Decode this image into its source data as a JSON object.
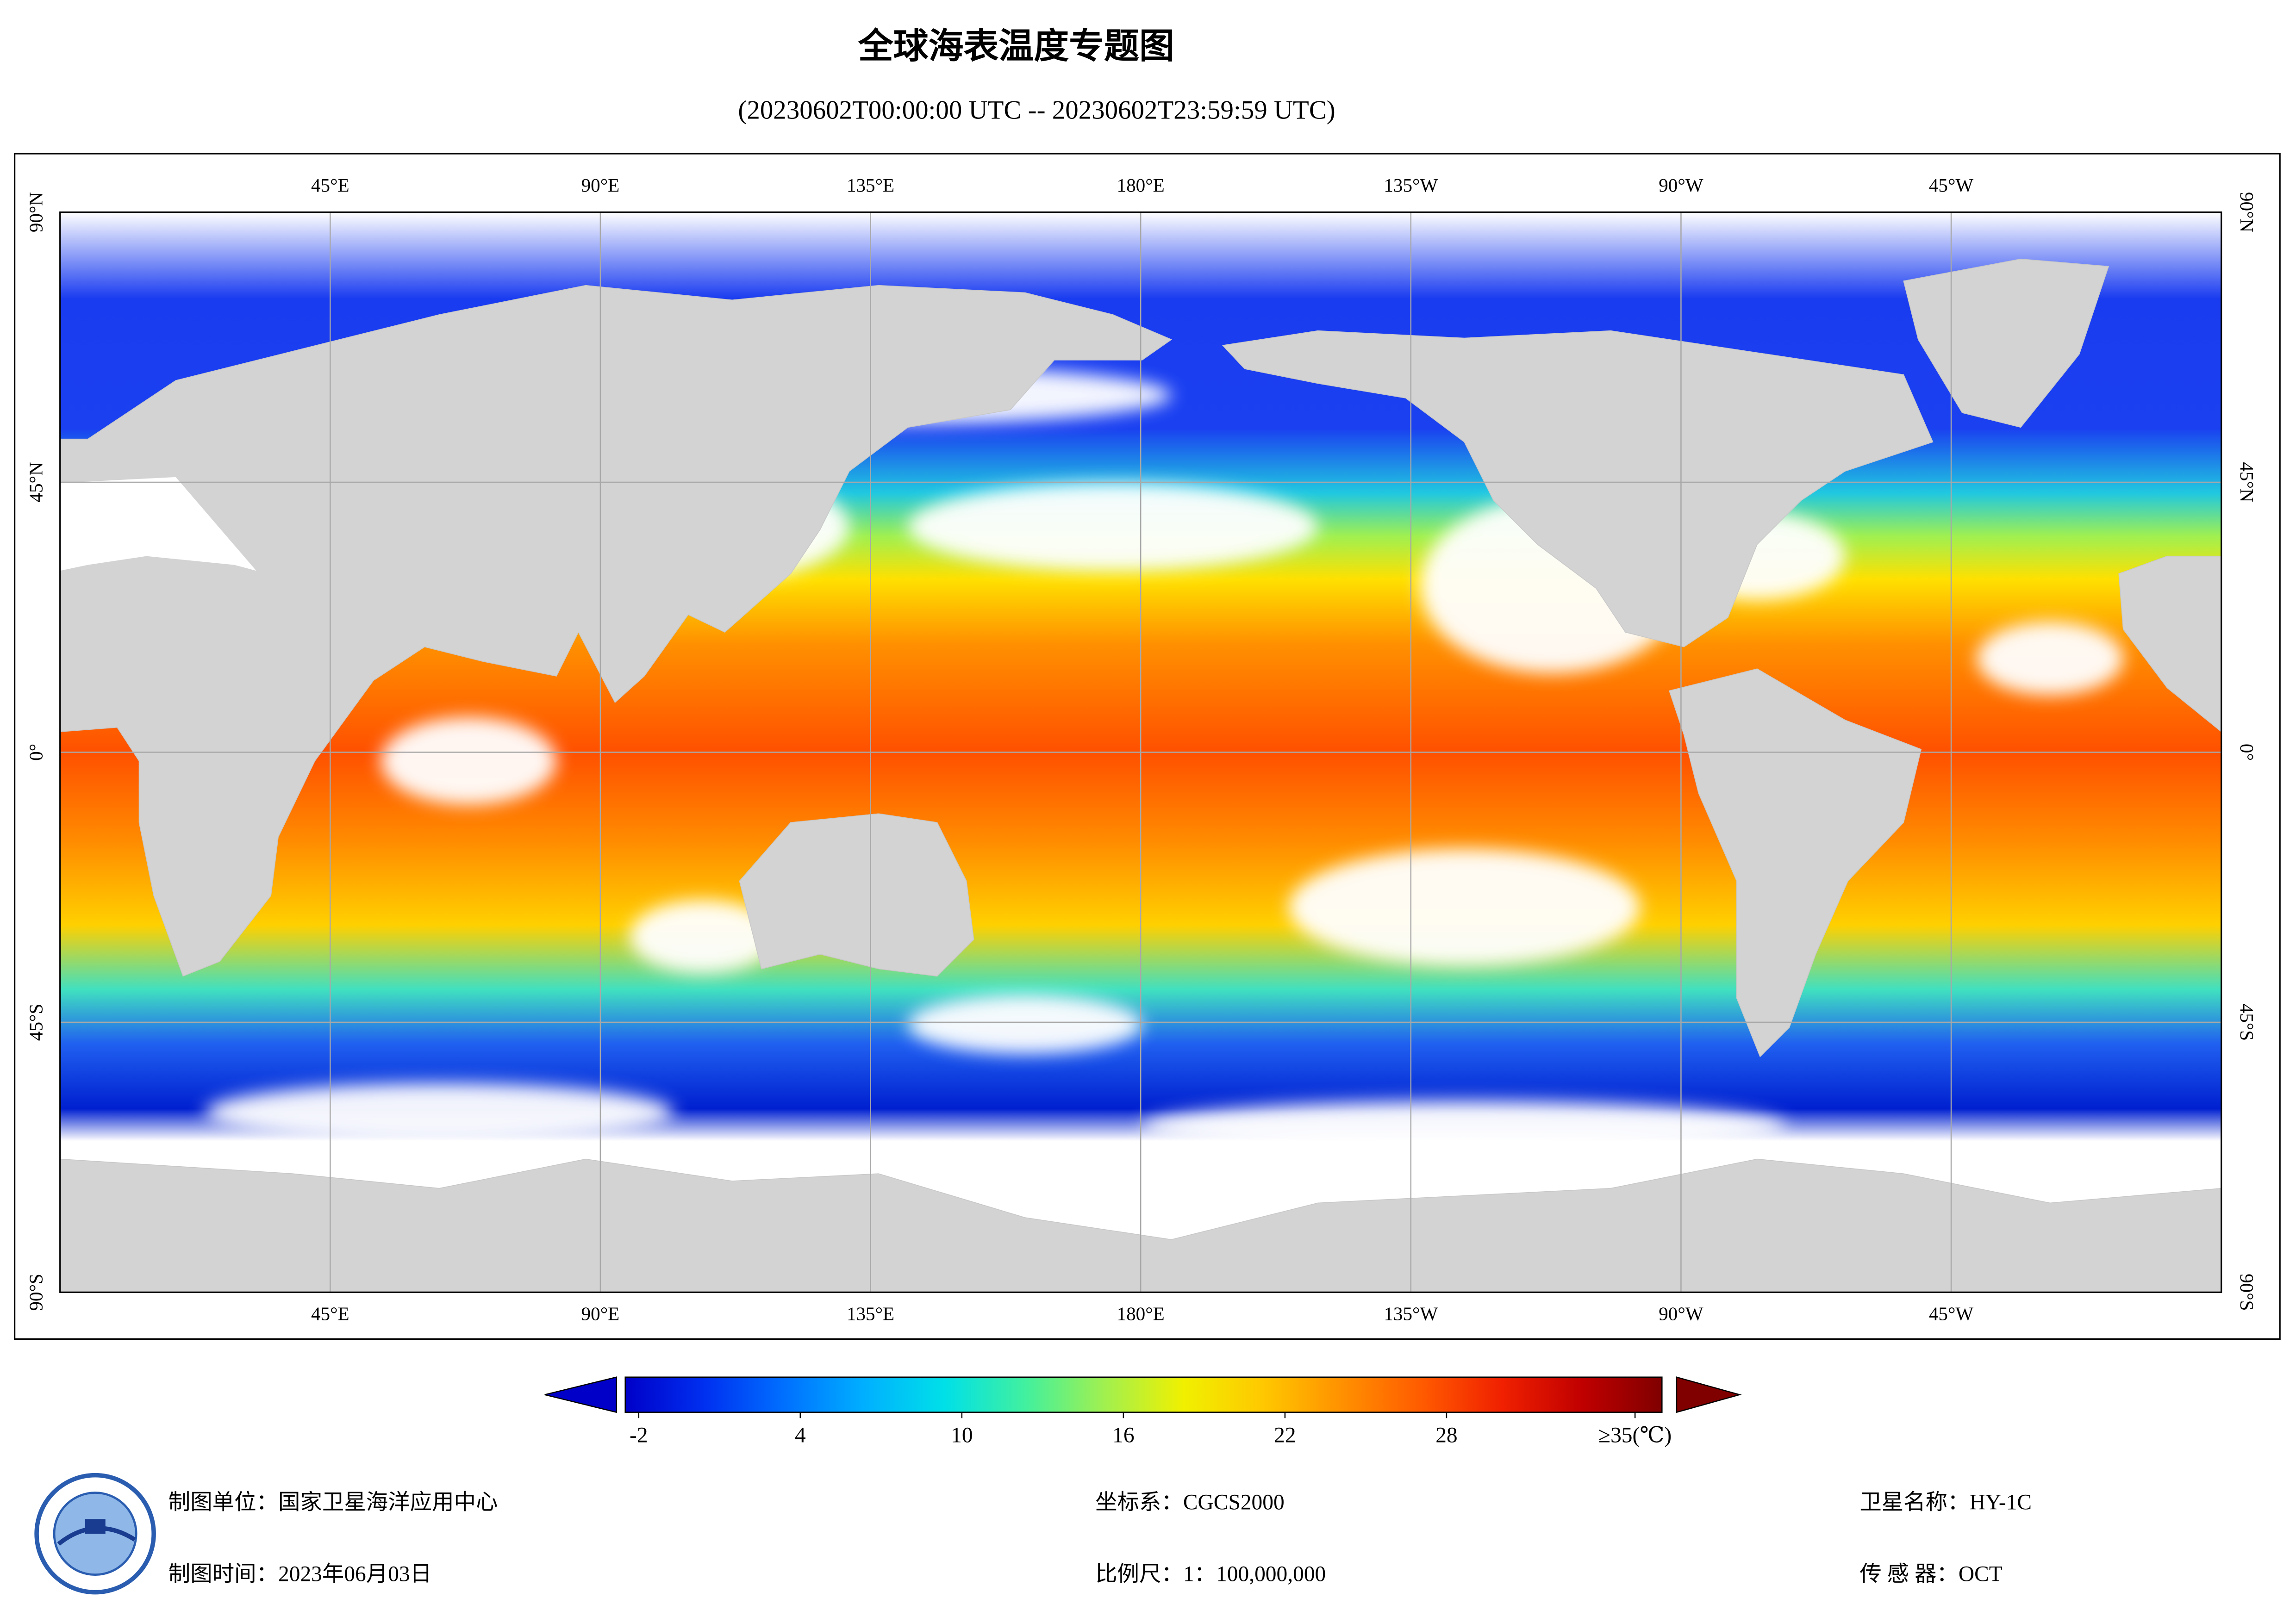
{
  "header": {
    "title": "全球海表温度专题图",
    "subtitle": "(20230602T00:00:00 UTC -- 20230602T23:59:59 UTC)"
  },
  "map": {
    "xlim": [
      0,
      360
    ],
    "ylim": [
      -90,
      90
    ],
    "lon_ticks": [
      {
        "value": 45,
        "label": "45°E"
      },
      {
        "value": 90,
        "label": "90°E"
      },
      {
        "value": 135,
        "label": "135°E"
      },
      {
        "value": 180,
        "label": "180°E"
      },
      {
        "value": 225,
        "label": "135°W"
      },
      {
        "value": 270,
        "label": "90°W"
      },
      {
        "value": 315,
        "label": "45°W"
      }
    ],
    "lat_ticks": [
      {
        "value": 90,
        "label": "90°N"
      },
      {
        "value": 45,
        "label": "45°N"
      },
      {
        "value": 0,
        "label": "0°"
      },
      {
        "value": -45,
        "label": "45°S"
      },
      {
        "value": -90,
        "label": "90°S"
      }
    ],
    "grid": true
  },
  "colorbar": {
    "lim": [
      -2.5,
      36
    ],
    "ticks": [
      -2,
      4,
      10,
      16,
      22,
      28,
      {
        "value": 35,
        "label": "≥35(℃)"
      }
    ],
    "colors": [
      "#0000c8",
      "#0030f0",
      "#0070ff",
      "#00b0ff",
      "#00e0e8",
      "#40f0a0",
      "#a0f050",
      "#f0f000",
      "#ffc800",
      "#ff9000",
      "#ff5a00",
      "#f02000",
      "#c00000",
      "#800000"
    ]
  },
  "footer": {
    "unit": "制图单位：国家卫星海洋应用中心",
    "date": "制图时间：2023年06月03日",
    "crs": "坐标系：CGCS2000",
    "scale": "比例尺：1：100,000,000",
    "satellite": "卫星名称：HY-1C",
    "sensor": "传 感 器：OCT"
  }
}
